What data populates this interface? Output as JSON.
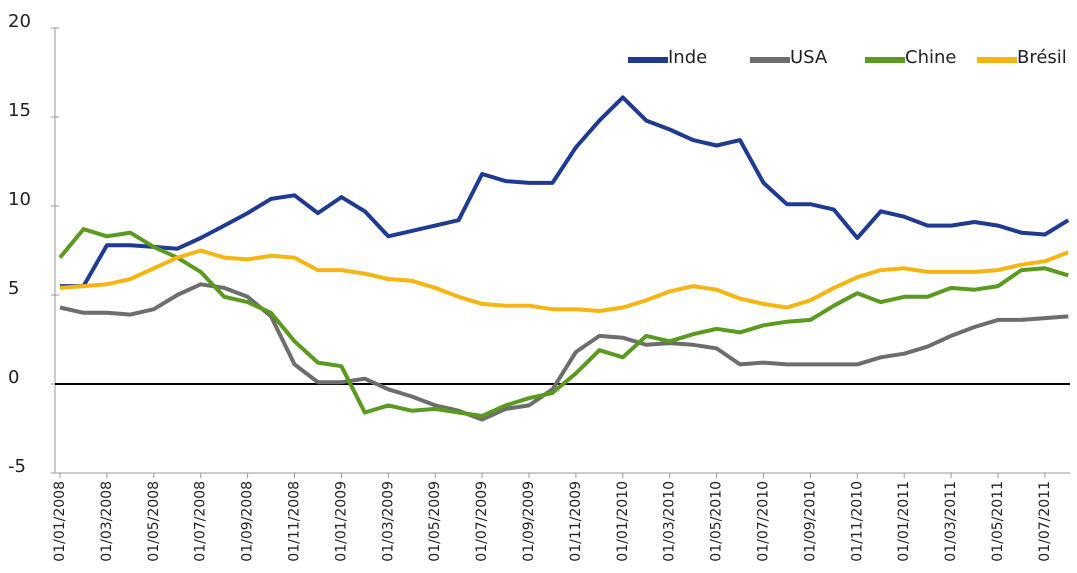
{
  "chart_data": {
    "type": "line",
    "categories": [
      "01/01/2008",
      null,
      "01/03/2008",
      null,
      "01/05/2008",
      null,
      "01/07/2008",
      null,
      "01/09/2008",
      null,
      "01/11/2008",
      null,
      "01/01/2009",
      null,
      "01/03/2009",
      null,
      "01/05/2009",
      null,
      "01/07/2009",
      null,
      "01/09/2009",
      null,
      "01/11/2009",
      null,
      "01/01/2010",
      null,
      "01/03/2010",
      null,
      "01/05/2010",
      null,
      "01/07/2010",
      null,
      "01/09/2010",
      null,
      "01/11/2010",
      null,
      "01/01/2011",
      null,
      "01/03/2011",
      null,
      "01/05/2011",
      null,
      "01/07/2011",
      null
    ],
    "series": [
      {
        "name": "Inde",
        "color": "#1f3a93",
        "values": [
          5.5,
          5.5,
          7.8,
          7.8,
          7.7,
          7.6,
          8.2,
          8.9,
          9.6,
          10.4,
          10.6,
          9.6,
          10.5,
          9.7,
          8.3,
          8.6,
          8.9,
          9.2,
          11.8,
          11.4,
          11.3,
          11.3,
          13.3,
          14.8,
          16.1,
          14.8,
          14.3,
          13.7,
          13.4,
          13.7,
          11.3,
          10.1,
          10.1,
          9.8,
          8.2,
          9.7,
          9.4,
          8.9,
          8.9,
          9.1,
          8.9,
          8.5,
          8.4,
          9.2
        ]
      },
      {
        "name": "USA",
        "color": "#6d6d6d",
        "values": [
          4.3,
          4.0,
          4.0,
          3.9,
          4.2,
          5.0,
          5.6,
          5.4,
          4.9,
          3.8,
          1.1,
          0.1,
          0.1,
          0.3,
          -0.3,
          -0.7,
          -1.2,
          -1.5,
          -2.0,
          -1.4,
          -1.2,
          -0.3,
          1.8,
          2.7,
          2.6,
          2.2,
          2.3,
          2.2,
          2.0,
          1.1,
          1.2,
          1.1,
          1.1,
          1.1,
          1.1,
          1.5,
          1.7,
          2.1,
          2.7,
          3.2,
          3.6,
          3.6,
          3.7,
          3.8
        ]
      },
      {
        "name": "Chine",
        "color": "#5a9a1f",
        "values": [
          7.1,
          8.7,
          8.3,
          8.5,
          7.7,
          7.1,
          6.3,
          4.9,
          4.6,
          4.0,
          2.4,
          1.2,
          1.0,
          -1.6,
          -1.2,
          -1.5,
          -1.4,
          -1.6,
          -1.8,
          -1.2,
          -0.8,
          -0.5,
          0.6,
          1.9,
          1.5,
          2.7,
          2.4,
          2.8,
          3.1,
          2.9,
          3.3,
          3.5,
          3.6,
          4.4,
          5.1,
          4.6,
          4.9,
          4.9,
          5.4,
          5.3,
          5.5,
          6.4,
          6.5,
          6.1
        ]
      },
      {
        "name": "Brésil",
        "color": "#f6b512",
        "values": [
          5.4,
          5.5,
          5.6,
          5.9,
          6.5,
          7.1,
          7.5,
          7.1,
          7.0,
          7.2,
          7.1,
          6.4,
          6.4,
          6.2,
          5.9,
          5.8,
          5.4,
          4.9,
          4.5,
          4.4,
          4.4,
          4.2,
          4.2,
          4.1,
          4.3,
          4.7,
          5.2,
          5.5,
          5.3,
          4.8,
          4.5,
          4.3,
          4.7,
          5.4,
          6.0,
          6.4,
          6.5,
          6.3,
          6.3,
          6.3,
          6.4,
          6.7,
          6.9,
          7.4
        ]
      }
    ],
    "ylim": [
      -5,
      20
    ],
    "yticks": [
      -5,
      0,
      5,
      10,
      15,
      20
    ],
    "zero_line": true,
    "legend": "top-right"
  }
}
